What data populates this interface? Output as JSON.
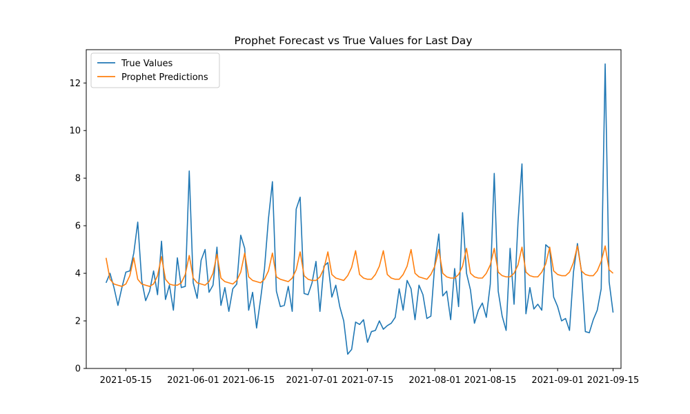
{
  "chart_data": {
    "type": "line",
    "title": "Prophet Forecast vs True Values for Last Day",
    "xlabel": "",
    "ylabel": "",
    "x_start": "2021-05-10",
    "x_end": "2021-09-13",
    "xlim": [
      "2021-05-05",
      "2021-09-17"
    ],
    "ylim": [
      0,
      13.4
    ],
    "x_ticks": [
      "2021-05-15",
      "2021-06-01",
      "2021-06-15",
      "2021-07-01",
      "2021-07-15",
      "2021-08-01",
      "2021-08-15",
      "2021-09-01",
      "2021-09-15"
    ],
    "y_ticks": [
      0,
      2,
      4,
      6,
      8,
      10,
      12
    ],
    "legend_position": "upper-left",
    "grid": false,
    "series": [
      {
        "name": "True Values",
        "color": "#1f77b4",
        "values": [
          3.6,
          4.0,
          3.4,
          2.65,
          3.4,
          4.05,
          4.1,
          4.85,
          6.15,
          3.7,
          2.85,
          3.25,
          4.1,
          3.1,
          5.35,
          2.9,
          3.5,
          2.45,
          4.65,
          3.4,
          3.45,
          8.3,
          3.6,
          2.95,
          4.55,
          5.0,
          3.2,
          3.5,
          5.1,
          2.65,
          3.4,
          2.4,
          3.35,
          3.55,
          5.6,
          5.05,
          2.45,
          3.2,
          1.7,
          2.9,
          4.2,
          6.3,
          7.85,
          3.25,
          2.6,
          2.65,
          3.45,
          2.4,
          6.7,
          7.2,
          3.15,
          3.1,
          3.6,
          4.5,
          2.4,
          4.3,
          4.45,
          3.0,
          3.5,
          2.6,
          2.0,
          0.6,
          0.8,
          1.95,
          1.85,
          2.05,
          1.1,
          1.55,
          1.6,
          2.0,
          1.65,
          1.8,
          1.9,
          2.15,
          3.35,
          2.45,
          3.7,
          3.35,
          2.05,
          3.5,
          3.1,
          2.1,
          2.2,
          4.4,
          5.65,
          3.05,
          3.25,
          2.05,
          4.2,
          2.6,
          6.55,
          4.0,
          3.3,
          1.9,
          2.45,
          2.75,
          2.15,
          3.55,
          8.2,
          3.25,
          2.2,
          1.6,
          5.05,
          2.7,
          6.15,
          8.6,
          2.3,
          3.4,
          2.5,
          2.7,
          2.45,
          5.2,
          5.05,
          3.0,
          2.6,
          2.0,
          2.1,
          1.6,
          4.05,
          5.25,
          4.1,
          1.55,
          1.5,
          2.05,
          2.45,
          3.35,
          12.8,
          3.65,
          2.35
        ]
      },
      {
        "name": "Prophet Predictions",
        "color": "#ff7f0e",
        "values": [
          4.65,
          3.75,
          3.55,
          3.5,
          3.45,
          3.55,
          3.9,
          4.65,
          3.75,
          3.55,
          3.5,
          3.45,
          3.55,
          3.9,
          4.7,
          3.75,
          3.55,
          3.5,
          3.5,
          3.6,
          3.95,
          4.75,
          3.8,
          3.6,
          3.55,
          3.5,
          3.65,
          4.0,
          4.8,
          3.8,
          3.65,
          3.6,
          3.55,
          3.7,
          4.05,
          4.85,
          3.85,
          3.7,
          3.65,
          3.6,
          3.75,
          4.1,
          4.85,
          3.85,
          3.75,
          3.7,
          3.65,
          3.8,
          4.15,
          4.9,
          3.9,
          3.75,
          3.7,
          3.7,
          3.85,
          4.2,
          4.9,
          3.95,
          3.8,
          3.75,
          3.7,
          3.9,
          4.25,
          4.95,
          3.95,
          3.8,
          3.75,
          3.75,
          3.95,
          4.3,
          4.95,
          3.95,
          3.8,
          3.75,
          3.75,
          3.95,
          4.3,
          5.0,
          4.0,
          3.85,
          3.8,
          3.75,
          3.95,
          4.3,
          5.0,
          4.0,
          3.85,
          3.8,
          3.8,
          3.95,
          4.3,
          5.05,
          4.0,
          3.85,
          3.8,
          3.8,
          4.0,
          4.35,
          5.05,
          4.05,
          3.9,
          3.85,
          3.85,
          4.0,
          4.35,
          5.1,
          4.05,
          3.9,
          3.85,
          3.85,
          4.05,
          4.4,
          5.1,
          4.1,
          3.95,
          3.9,
          3.9,
          4.05,
          4.45,
          5.15,
          4.1,
          3.95,
          3.9,
          3.9,
          4.1,
          4.5,
          5.15,
          4.15,
          4.0
        ]
      }
    ]
  }
}
